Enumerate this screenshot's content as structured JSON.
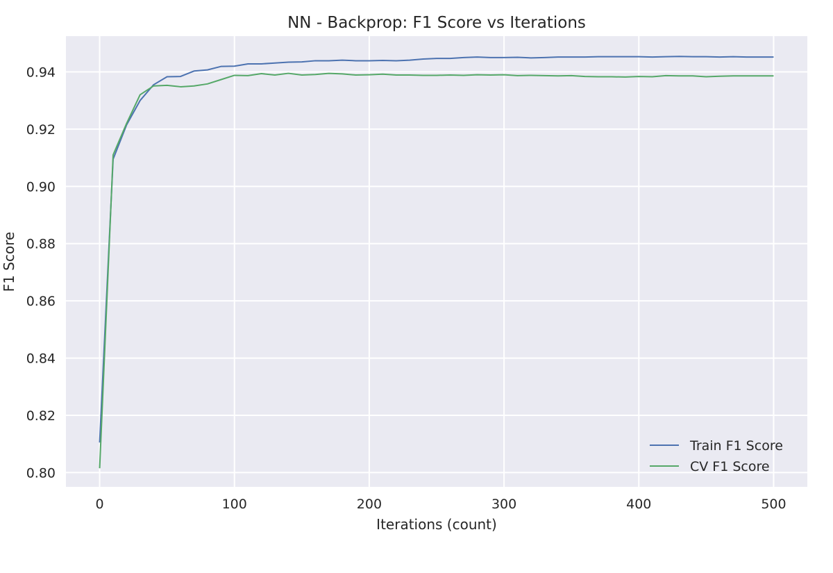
{
  "chart_data": {
    "type": "line",
    "title": "NN - Backprop: F1 Score vs Iterations",
    "xlabel": "Iterations (count)",
    "ylabel": "F1 Score",
    "xlim": [
      -25,
      525
    ],
    "ylim": [
      0.795,
      0.9525
    ],
    "xticks": [
      0,
      100,
      200,
      300,
      400,
      500
    ],
    "xtick_labels": [
      "0",
      "100",
      "200",
      "300",
      "400",
      "500"
    ],
    "yticks": [
      0.8,
      0.82,
      0.84,
      0.86,
      0.88,
      0.9,
      0.92,
      0.94
    ],
    "ytick_labels": [
      "0.80",
      "0.82",
      "0.84",
      "0.86",
      "0.88",
      "0.90",
      "0.92",
      "0.94"
    ],
    "grid": true,
    "legend_position": "lower-right",
    "background_color": "#eaeaf2",
    "grid_color": "#ffffff",
    "x": [
      0,
      10,
      20,
      30,
      40,
      50,
      60,
      70,
      80,
      90,
      100,
      110,
      120,
      130,
      140,
      150,
      160,
      170,
      180,
      190,
      200,
      210,
      220,
      230,
      240,
      250,
      260,
      270,
      280,
      290,
      300,
      310,
      320,
      330,
      340,
      350,
      360,
      370,
      380,
      390,
      400,
      410,
      420,
      430,
      440,
      450,
      460,
      470,
      480,
      490,
      500
    ],
    "series": [
      {
        "name": "Train F1 Score",
        "color": "#4c72b0",
        "values": [
          0.8105,
          0.9095,
          0.9215,
          0.93,
          0.9355,
          0.9383,
          0.9384,
          0.9403,
          0.9407,
          0.9419,
          0.942,
          0.9428,
          0.9428,
          0.9431,
          0.9434,
          0.9435,
          0.9439,
          0.9439,
          0.9441,
          0.9439,
          0.9439,
          0.944,
          0.9439,
          0.9441,
          0.9445,
          0.9447,
          0.9447,
          0.945,
          0.9452,
          0.945,
          0.945,
          0.9451,
          0.9449,
          0.945,
          0.9452,
          0.9452,
          0.9452,
          0.9453,
          0.9453,
          0.9453,
          0.9453,
          0.9452,
          0.9453,
          0.9454,
          0.9453,
          0.9453,
          0.9452,
          0.9453,
          0.9452,
          0.9452,
          0.9452
        ]
      },
      {
        "name": "CV F1 Score",
        "color": "#55a868",
        "values": [
          0.8015,
          0.911,
          0.922,
          0.932,
          0.9351,
          0.9353,
          0.9348,
          0.9351,
          0.9358,
          0.9373,
          0.9388,
          0.9387,
          0.9394,
          0.9389,
          0.9395,
          0.9389,
          0.9391,
          0.9395,
          0.9393,
          0.9389,
          0.939,
          0.9392,
          0.9389,
          0.9389,
          0.9388,
          0.9388,
          0.9389,
          0.9388,
          0.939,
          0.9389,
          0.939,
          0.9387,
          0.9388,
          0.9387,
          0.9386,
          0.9387,
          0.9384,
          0.9383,
          0.9383,
          0.9382,
          0.9384,
          0.9383,
          0.9387,
          0.9386,
          0.9386,
          0.9383,
          0.9385,
          0.9386,
          0.9386,
          0.9386,
          0.9386
        ]
      }
    ]
  }
}
